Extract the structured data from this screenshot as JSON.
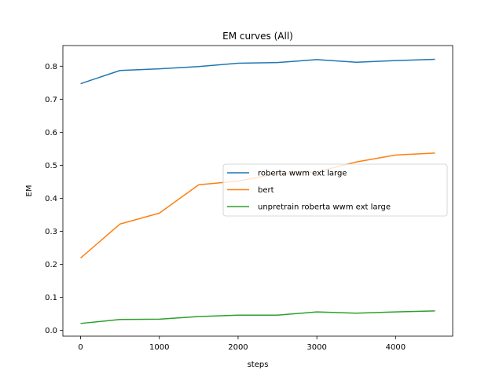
{
  "chart_data": {
    "type": "line",
    "title": "EM curves (All)",
    "xlabel": "steps",
    "ylabel": "EM",
    "xlim": [
      -225,
      4725
    ],
    "ylim": [
      -0.0175,
      0.8625
    ],
    "xticks": [
      0,
      1000,
      2000,
      3000,
      4000
    ],
    "xtick_labels": [
      "0",
      "1000",
      "2000",
      "3000",
      "4000"
    ],
    "yticks": [
      0.0,
      0.1,
      0.2,
      0.3,
      0.4,
      0.5,
      0.6,
      0.7,
      0.8
    ],
    "ytick_labels": [
      "0.0",
      "0.1",
      "0.2",
      "0.3",
      "0.4",
      "0.5",
      "0.6",
      "0.7",
      "0.8"
    ],
    "grid": false,
    "legend_position": "center-right",
    "x": [
      0,
      500,
      1000,
      1500,
      2000,
      2500,
      3000,
      3500,
      4000,
      4500
    ],
    "series": [
      {
        "name": "roberta wwm ext large",
        "color": "#1f77b4",
        "values": [
          0.747,
          0.787,
          0.792,
          0.799,
          0.809,
          0.811,
          0.82,
          0.812,
          0.817,
          0.821
        ]
      },
      {
        "name": "bert",
        "color": "#ff7f0e",
        "values": [
          0.219,
          0.322,
          0.355,
          0.441,
          0.452,
          0.475,
          0.48,
          0.51,
          0.531,
          0.537
        ]
      },
      {
        "name": "unpretrain roberta wwm ext large",
        "color": "#2ca02c",
        "values": [
          0.021,
          0.033,
          0.034,
          0.042,
          0.046,
          0.046,
          0.056,
          0.052,
          0.056,
          0.059
        ]
      }
    ]
  }
}
